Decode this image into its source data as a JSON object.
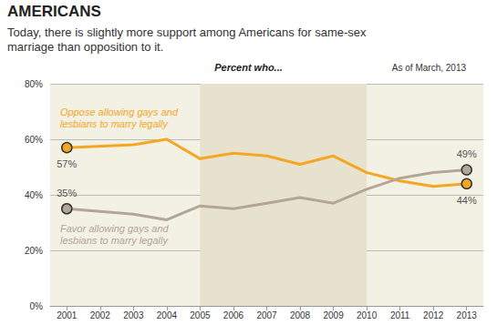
{
  "chart_data": {
    "type": "line",
    "title": "AMERICANS",
    "subtitle": "Today, there is slightly more support among Americans for same-sex marriage than opposition to it.",
    "annotations": [
      "Percent who...",
      "As of March, 2013"
    ],
    "categories": [
      "2001",
      "2002",
      "2003",
      "2004",
      "2005",
      "2006",
      "2007",
      "2008",
      "2009",
      "2010",
      "2011",
      "2012",
      "2013"
    ],
    "series": [
      {
        "name": "Oppose allowing gays and lesbians to marry legally",
        "color": "#f5a623",
        "marker": "circle",
        "values": [
          57,
          null,
          58,
          60,
          53,
          55,
          54,
          51,
          54,
          48,
          45,
          43,
          44
        ],
        "value_labels": [
          "57%",
          null,
          null,
          null,
          null,
          null,
          null,
          null,
          null,
          null,
          null,
          null,
          "44%"
        ]
      },
      {
        "name": "Favor allowing gays and lesbians to marry legally",
        "color": "#b3a696",
        "marker": "circle",
        "values": [
          35,
          null,
          33,
          31,
          36,
          35,
          37,
          39,
          37,
          42,
          46,
          48,
          49
        ],
        "value_labels": [
          "35%",
          null,
          null,
          null,
          null,
          null,
          null,
          null,
          null,
          null,
          null,
          null,
          "49%"
        ]
      }
    ],
    "ylim": [
      0,
      80
    ],
    "yticks": [
      {
        "value": 0,
        "label": "0%"
      },
      {
        "value": 20,
        "label": "20%"
      },
      {
        "value": 40,
        "label": "40%"
      },
      {
        "value": 60,
        "label": "60%"
      },
      {
        "value": 80,
        "label": "80%"
      }
    ],
    "grid": true,
    "highlight": {
      "from": "2005",
      "to": "2010"
    }
  }
}
